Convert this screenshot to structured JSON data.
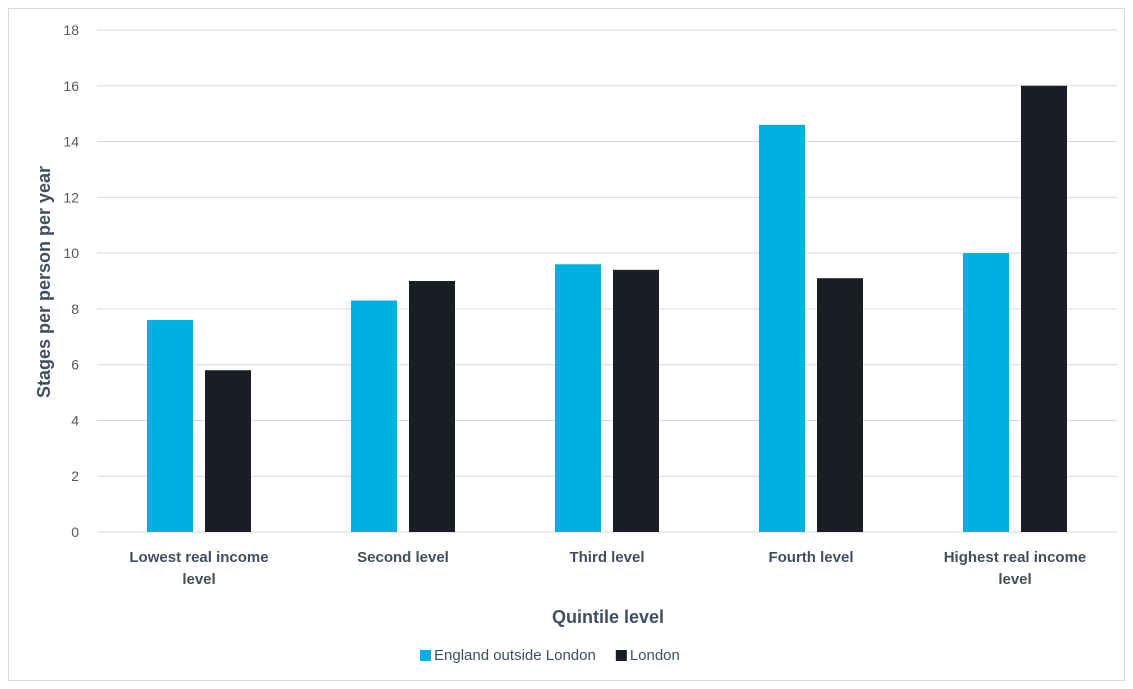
{
  "chart_data": {
    "type": "bar",
    "title": "",
    "xlabel": "Quintile level",
    "ylabel": "Stages per person per year",
    "ylim": [
      0,
      18
    ],
    "yticks": [
      0,
      2,
      4,
      6,
      8,
      10,
      12,
      14,
      16,
      18
    ],
    "grid": true,
    "legend_position": "bottom",
    "categories": [
      [
        "Lowest real income",
        "level"
      ],
      [
        "Second level"
      ],
      [
        "Third level"
      ],
      [
        "Fourth level"
      ],
      [
        "Highest real income",
        "level"
      ]
    ],
    "series": [
      {
        "name": "England outside London",
        "color": "#00b0e0",
        "values": [
          7.6,
          8.3,
          9.6,
          14.6,
          10.0
        ]
      },
      {
        "name": "London",
        "color": "#1a1d24",
        "values": [
          5.8,
          9.0,
          9.4,
          9.1,
          16.0
        ]
      }
    ]
  }
}
